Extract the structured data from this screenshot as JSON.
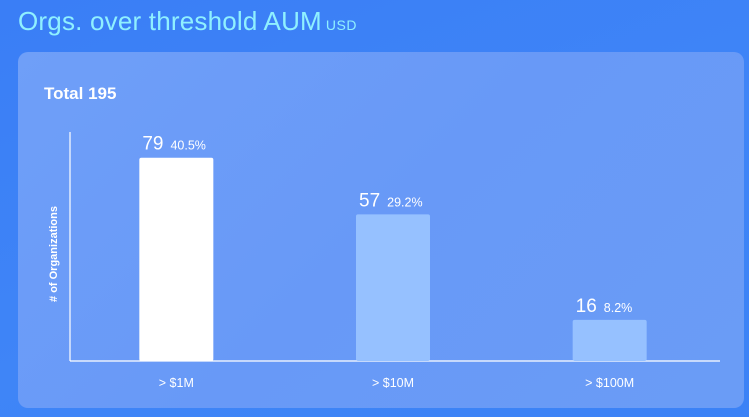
{
  "page": {
    "title": "Orgs. over threshold AUM",
    "unit": "USD"
  },
  "card": {
    "total_label": "Total 195"
  },
  "chart_data": {
    "type": "bar",
    "title": "Orgs. over threshold AUM",
    "ylabel": "# of Organizations",
    "xlabel": "",
    "categories": [
      "> $1M",
      "> $10M",
      "> $100M"
    ],
    "values": [
      79,
      57,
      16
    ],
    "percent_labels": [
      "40.5%",
      "29.2%",
      "8.2%"
    ],
    "ylim": [
      0,
      89
    ],
    "grid": false,
    "legend": "none",
    "colors": {
      "bars": [
        "#ffffff",
        "#96c1ff",
        "#96c1ff"
      ],
      "axis": "#ffffff",
      "label": "#ffffff"
    }
  }
}
